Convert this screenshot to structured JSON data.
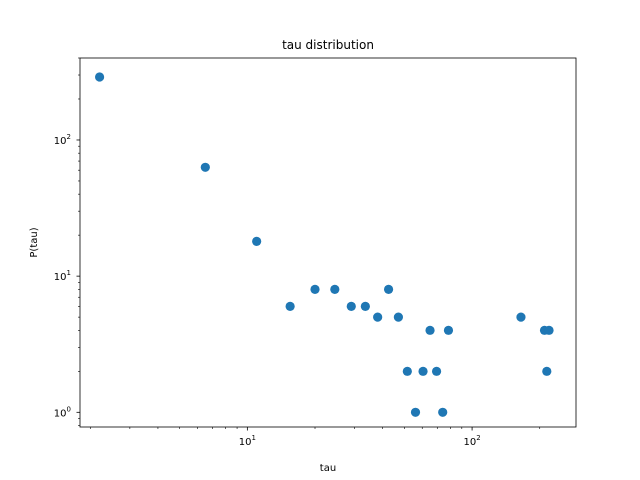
{
  "chart_data": {
    "type": "scatter",
    "title": "tau distribution",
    "xlabel": "tau",
    "ylabel": "P(tau)",
    "xscale": "log",
    "yscale": "log",
    "xlim": [
      1.8,
      290
    ],
    "ylim": [
      0.78,
      400
    ],
    "grid": false,
    "marker_color": "#1f77b4",
    "x_major_ticks": [
      {
        "value": 10,
        "base": "10",
        "exp": "1"
      },
      {
        "value": 100,
        "base": "10",
        "exp": "2"
      }
    ],
    "y_major_ticks": [
      {
        "value": 1,
        "base": "10",
        "exp": "0"
      },
      {
        "value": 10,
        "base": "10",
        "exp": "1"
      },
      {
        "value": 100,
        "base": "10",
        "exp": "2"
      }
    ],
    "points": [
      {
        "x": 2.2,
        "y": 290
      },
      {
        "x": 6.5,
        "y": 63
      },
      {
        "x": 11,
        "y": 18
      },
      {
        "x": 15.5,
        "y": 6
      },
      {
        "x": 20,
        "y": 8
      },
      {
        "x": 24.5,
        "y": 8
      },
      {
        "x": 29,
        "y": 6
      },
      {
        "x": 33.5,
        "y": 6
      },
      {
        "x": 38,
        "y": 5
      },
      {
        "x": 42.5,
        "y": 8
      },
      {
        "x": 47,
        "y": 5
      },
      {
        "x": 51.5,
        "y": 2
      },
      {
        "x": 56,
        "y": 1
      },
      {
        "x": 60.5,
        "y": 2
      },
      {
        "x": 65,
        "y": 4
      },
      {
        "x": 69.5,
        "y": 2
      },
      {
        "x": 74,
        "y": 1
      },
      {
        "x": 78.5,
        "y": 4
      },
      {
        "x": 165,
        "y": 5
      },
      {
        "x": 210,
        "y": 4
      },
      {
        "x": 215,
        "y": 2
      },
      {
        "x": 220,
        "y": 4
      }
    ]
  }
}
